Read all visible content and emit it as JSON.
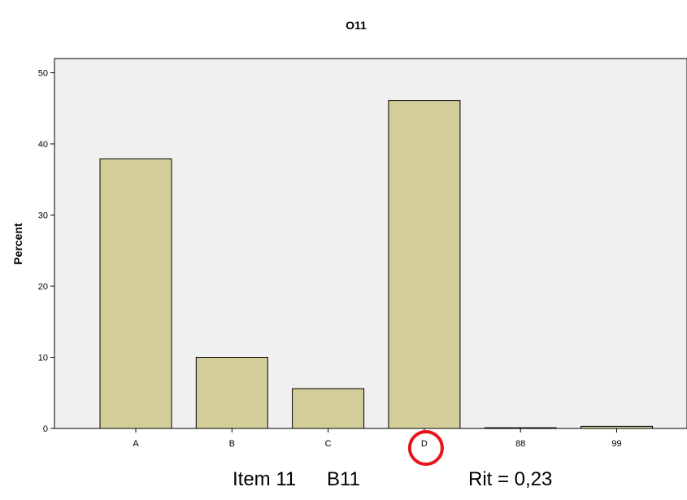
{
  "chart_data": {
    "type": "bar",
    "title": "O11",
    "ylabel": "Percent",
    "xlabel": "",
    "categories": [
      "A",
      "B",
      "C",
      "D",
      "88",
      "99"
    ],
    "values": [
      37.9,
      10.0,
      5.6,
      46.1,
      0.1,
      0.3
    ],
    "ylim": [
      0,
      52
    ],
    "yticks": [
      0,
      10,
      20,
      30,
      40,
      50
    ],
    "grid": false,
    "bar_color": "#d3ce99",
    "plot_background": "#f0f0f0",
    "highlighted_category": "D",
    "highlight_color": "#e8141c"
  },
  "caption": {
    "item": "Item 11",
    "code": "B11",
    "rit": "Rit = 0,23"
  }
}
